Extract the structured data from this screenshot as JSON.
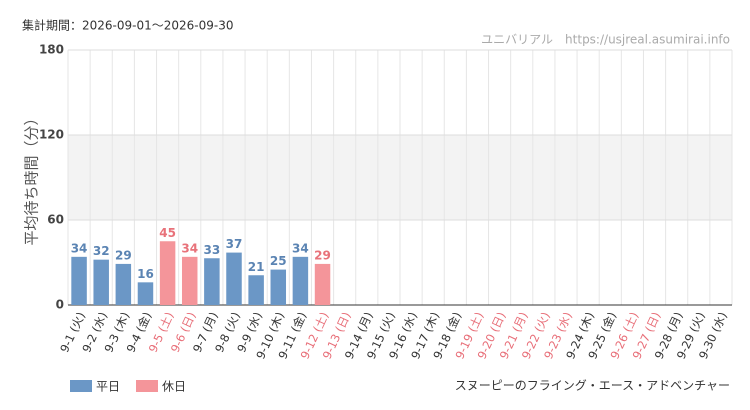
{
  "chart_data": {
    "type": "bar",
    "subtitle": "集計期間：2026-09-01～2026-09-30",
    "source": "ユニバリアル　https://usjreal.asumirai.info",
    "ylabel": "平均待ち時間（分）",
    "caption": "スヌーピーのフライング・エース・アドベンチャー",
    "categories": [
      "9-1 (火)",
      "9-2 (水)",
      "9-3 (木)",
      "9-4 (金)",
      "9-5 (土)",
      "9-6 (日)",
      "9-7 (月)",
      "9-8 (火)",
      "9-9 (水)",
      "9-10 (木)",
      "9-11 (金)",
      "9-12 (土)",
      "9-13 (日)",
      "9-14 (月)",
      "9-15 (火)",
      "9-16 (水)",
      "9-17 (木)",
      "9-18 (金)",
      "9-19 (土)",
      "9-20 (日)",
      "9-21 (月)",
      "9-22 (火)",
      "9-23 (水)",
      "9-24 (木)",
      "9-25 (金)",
      "9-26 (土)",
      "9-27 (日)",
      "9-28 (月)",
      "9-29 (火)",
      "9-30 (水)"
    ],
    "category_colors": [
      "#333",
      "#333",
      "#333",
      "#333",
      "#e86e78",
      "#e86e78",
      "#333",
      "#333",
      "#333",
      "#333",
      "#333",
      "#e86e78",
      "#e86e78",
      "#333",
      "#333",
      "#333",
      "#333",
      "#333",
      "#e86e78",
      "#e86e78",
      "#e86e78",
      "#e86e78",
      "#e86e78",
      "#333",
      "#333",
      "#e86e78",
      "#e86e78",
      "#333",
      "#333",
      "#333"
    ],
    "series": [
      {
        "name": "平日",
        "color": "#6b97c6",
        "label_color": "#5b84b3",
        "values": [
          34,
          32,
          29,
          16,
          null,
          null,
          33,
          37,
          21,
          25,
          34,
          null,
          null,
          null,
          null,
          null,
          null,
          null,
          null,
          null,
          null,
          null,
          null,
          null,
          null,
          null,
          null,
          null,
          null,
          null
        ]
      },
      {
        "name": "休日",
        "color": "#f4959a",
        "label_color": "#e8727a",
        "values": [
          null,
          null,
          null,
          null,
          45,
          34,
          null,
          null,
          null,
          null,
          null,
          29,
          null,
          null,
          null,
          null,
          null,
          null,
          null,
          null,
          null,
          null,
          null,
          null,
          null,
          null,
          null,
          null,
          null,
          null
        ]
      }
    ],
    "ylim": [
      0,
      180
    ],
    "yticks": [
      0,
      60,
      120,
      180
    ],
    "grid": true
  }
}
